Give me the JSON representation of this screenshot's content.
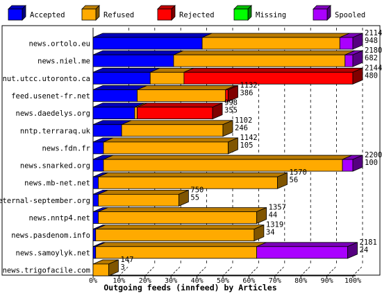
{
  "chart_data": {
    "type": "bar",
    "orientation": "horizontal",
    "stacked": true,
    "xlabel": "Outgoing feeds (innfeed) by Articles",
    "x_ticks": [
      "0%",
      "10%",
      "20%",
      "30%",
      "40%",
      "50%",
      "60%",
      "70%",
      "80%",
      "90%",
      "100%"
    ],
    "xlim": [
      0,
      100
    ],
    "grid": "vertical dashed",
    "legend": "top",
    "series": [
      {
        "name": "Accepted",
        "color": "#0000ff"
      },
      {
        "name": "Refused",
        "color": "#ffaa00"
      },
      {
        "name": "Rejected",
        "color": "#ff0000"
      },
      {
        "name": "Missing",
        "color": "#00ff00"
      },
      {
        "name": "Spooled",
        "color": "#aa00ff"
      }
    ],
    "rows": [
      {
        "label": "news.ortolo.eu",
        "total": 2114,
        "sub": 948,
        "segments": [
          42,
          53,
          0,
          0,
          5
        ]
      },
      {
        "label": "news.niel.me",
        "total": 2180,
        "sub": 682,
        "segments": [
          31,
          66,
          0,
          0,
          3
        ]
      },
      {
        "label": "nut.utcc.utoronto.ca",
        "total": 2144,
        "sub": 480,
        "segments": [
          22,
          13,
          65,
          0,
          0
        ]
      },
      {
        "label": "feed.usenet-fr.net",
        "total": 1132,
        "sub": 386,
        "segments": [
          17,
          34,
          1,
          0,
          0
        ]
      },
      {
        "label": "news.daedelys.org",
        "total": 998,
        "sub": 355,
        "segments": [
          16,
          1,
          29,
          0,
          0
        ]
      },
      {
        "label": "nntp.terraraq.uk",
        "total": 1102,
        "sub": 246,
        "segments": [
          11,
          39,
          0,
          0,
          0
        ]
      },
      {
        "label": "news.fdn.fr",
        "total": 1142,
        "sub": 105,
        "segments": [
          4,
          48,
          0,
          0,
          0
        ]
      },
      {
        "label": "news.snarked.org",
        "total": 2200,
        "sub": 100,
        "segments": [
          4,
          92,
          0,
          0,
          4
        ]
      },
      {
        "label": "news.mb-net.net",
        "total": 1570,
        "sub": 56,
        "segments": [
          2,
          69,
          0,
          0,
          0
        ]
      },
      {
        "label": "eternal-september.org",
        "total": 750,
        "sub": 55,
        "segments": [
          2,
          31,
          0,
          0,
          0
        ]
      },
      {
        "label": "news.nntp4.net",
        "total": 1357,
        "sub": 44,
        "segments": [
          2,
          61,
          0,
          0,
          0
        ]
      },
      {
        "label": "news.pasdenom.info",
        "total": 1319,
        "sub": 34,
        "segments": [
          1,
          61,
          0,
          0,
          0
        ]
      },
      {
        "label": "news.samoylyk.net",
        "total": 2181,
        "sub": 24,
        "segments": [
          1,
          62,
          0,
          0,
          35
        ]
      },
      {
        "label": "news.trigofacile.com",
        "total": 147,
        "sub": 3,
        "segments": [
          0,
          6,
          0,
          0,
          0
        ]
      }
    ]
  }
}
